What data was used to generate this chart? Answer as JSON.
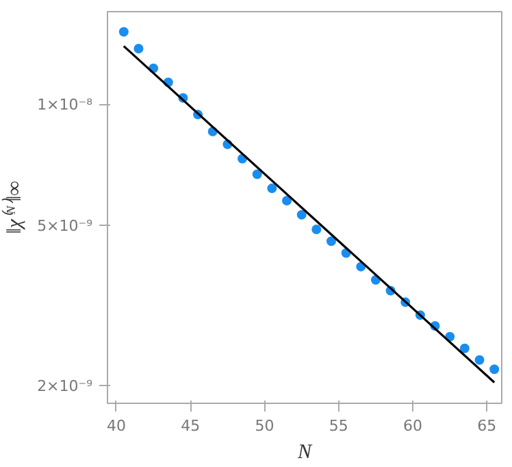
{
  "chart_data": {
    "type": "scatter",
    "xlabel": "N",
    "ylabel": "‖χ⁽ᴺ⁾‖∞",
    "log": "y",
    "marker": "circle",
    "grid": false,
    "xlim": [
      39.4,
      66
    ],
    "xticks": [
      40,
      45,
      50,
      55,
      60,
      65
    ],
    "ylim": [
      1.81e-09,
      1.706e-08
    ],
    "yticks": [
      {
        "value": 2e-09,
        "label": "2×10⁻⁹"
      },
      {
        "value": 5e-09,
        "label": "5×10⁻⁹"
      },
      {
        "value": 1e-08,
        "label": "1×10⁻⁸"
      }
    ],
    "series": [
      {
        "color": "#1a8ef0",
        "x": [
          40.5,
          41.5,
          42.5,
          43.5,
          44.5,
          45.5,
          46.5,
          47.5,
          48.5,
          49.5,
          50.5,
          51.5,
          52.5,
          53.5,
          54.5,
          55.5,
          56.5,
          57.5,
          58.5,
          59.5,
          60.5,
          61.5,
          62.5,
          63.5,
          64.5,
          65.5
        ],
        "values": [
          1.52e-08,
          1.38e-08,
          1.233e-08,
          1.138e-08,
          1.041e-08,
          9.46e-09,
          8.59e-09,
          7.98e-09,
          7.35e-09,
          6.72e-09,
          6.2e-09,
          5.78e-09,
          5.33e-09,
          4.9e-09,
          4.58e-09,
          4.28e-09,
          3.96e-09,
          3.67e-09,
          3.45e-09,
          3.23e-09,
          3e-09,
          2.82e-09,
          2.65e-09,
          2.48e-09,
          2.32e-09,
          2.2e-09
        ]
      },
      {
        "type": "line",
        "marker": "none",
        "color": "#000000",
        "x": [
          40.5,
          65.5
        ],
        "values": [
          1.4e-08,
          2.04e-09
        ]
      }
    ]
  }
}
